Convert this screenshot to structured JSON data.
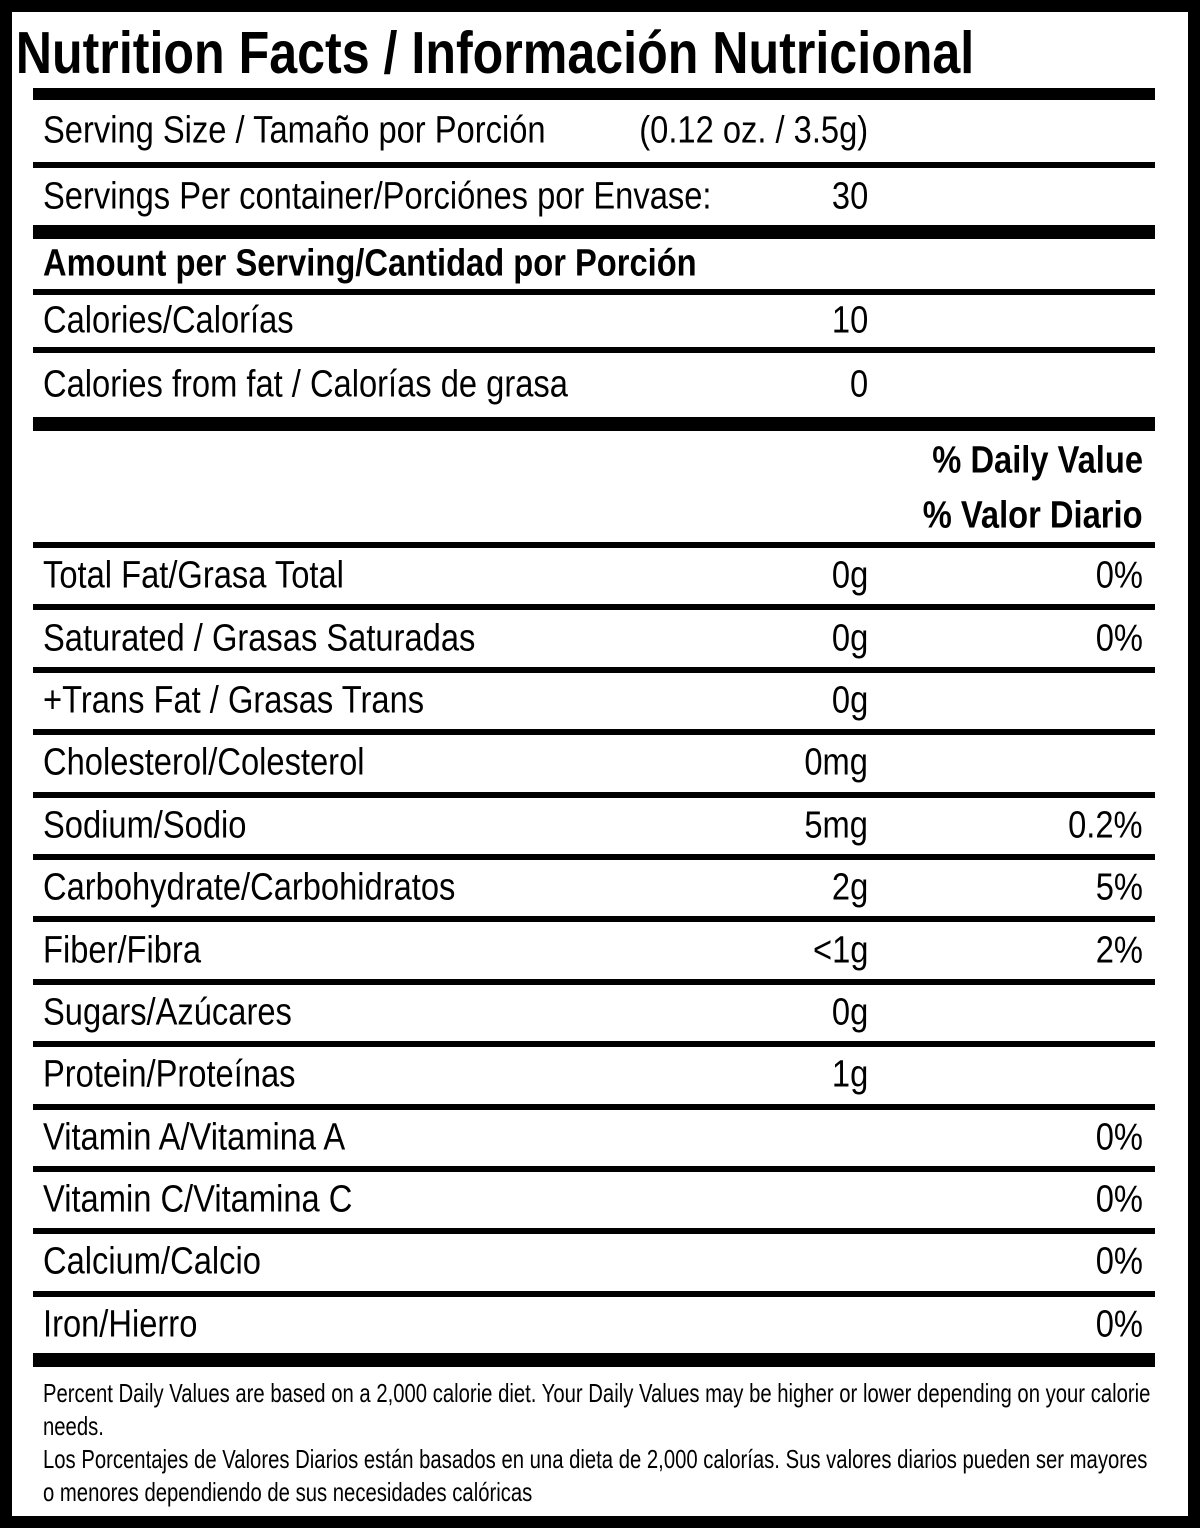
{
  "label": {
    "title": "Nutrition Facts / Información Nutricional",
    "serving_size": {
      "label": "Serving Size / Tamaño por Porción",
      "value": "(0.12 oz. / 3.5g)"
    },
    "servings_per_container": {
      "label": "Servings Per container/Porciónes por Envase:",
      "value": "30"
    },
    "amount_per_serving_heading": "Amount per Serving/Cantidad por Porción",
    "calories": {
      "label": "Calories/Calorías",
      "value": "10"
    },
    "calories_from_fat": {
      "label": "Calories from fat / Calorías de grasa",
      "value": "0"
    },
    "daily_value_heading_en": "% Daily Value",
    "daily_value_heading_es": "% Valor Diario",
    "nutrients": [
      {
        "label": "Total Fat/Grasa Total",
        "amount": "0g",
        "dv": "0%"
      },
      {
        "label": "Saturated / Grasas Saturadas",
        "amount": "0g",
        "dv": "0%"
      },
      {
        "label": "+Trans Fat / Grasas Trans",
        "amount": "0g",
        "dv": ""
      },
      {
        "label": "Cholesterol/Colesterol",
        "amount": "0mg",
        "dv": ""
      },
      {
        "label": "Sodium/Sodio",
        "amount": "5mg",
        "dv": "0.2%"
      },
      {
        "label": "Carbohydrate/Carbohidratos",
        "amount": "2g",
        "dv": "5%"
      },
      {
        "label": "Fiber/Fibra",
        "amount": "<1g",
        "dv": "2%"
      },
      {
        "label": "Sugars/Azúcares",
        "amount": "0g",
        "dv": ""
      },
      {
        "label": "Protein/Proteínas",
        "amount": "1g",
        "dv": ""
      },
      {
        "label": "Vitamin A/Vitamina A",
        "amount": "",
        "dv": "0%"
      },
      {
        "label": "Vitamin C/Vitamina C",
        "amount": "",
        "dv": "0%"
      },
      {
        "label": "Calcium/Calcio",
        "amount": "",
        "dv": "0%"
      },
      {
        "label": "Iron/Hierro",
        "amount": "",
        "dv": "0%"
      }
    ],
    "footnote_en": "Percent Daily Values are based on a 2,000 calorie diet. Your Daily Values may be higher or lower depending on your calorie needs.",
    "footnote_es": "Los Porcentajes de Valores Diarios están basados en una dieta de 2,000 calorías. Sus valores diarios pueden ser mayores o menores dependiendo de sus necesidades calóricas"
  },
  "colors": {
    "text": "#000000",
    "background": "#ffffff",
    "rule": "#000000"
  }
}
